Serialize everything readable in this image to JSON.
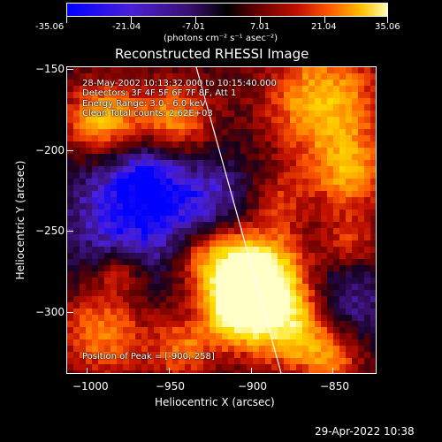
{
  "colorbar": {
    "ticks": [
      "-35.06",
      "-21.04",
      "-7.01",
      "7.01",
      "21.04",
      "35.06"
    ],
    "units": "(photons cm⁻² s⁻¹ asec⁻²)"
  },
  "title": "Reconstructed RHESSI Image",
  "info": {
    "line1": "28-May-2002 10:13:32.000 to 10:15:40.000",
    "line2": "Detectors: 3F 4F 5F 6F 7F 8F, Att 1",
    "line3": "Energy Range: 3.0 - 6.0 keV",
    "line4": "Clean    Total counts: 2.62E+03",
    "peak": "Position of Peak = [-900,-258]"
  },
  "axes": {
    "x_label": "Heliocentric X (arcsec)",
    "y_label": "Heliocentric Y (arcsec)",
    "x_ticks": [
      "−1000",
      "−950",
      "−900",
      "−850"
    ],
    "y_ticks": [
      "−150",
      "−200",
      "−250",
      "−300"
    ]
  },
  "timestamp": "29-Apr-2022 10:38",
  "colors": {
    "colormap": [
      "#0000ff",
      "#5a1fd0",
      "#3a1070",
      "#000000",
      "#6a0000",
      "#c01000",
      "#ff5a00",
      "#ffa000",
      "#ffe000",
      "#ffffff"
    ]
  }
}
